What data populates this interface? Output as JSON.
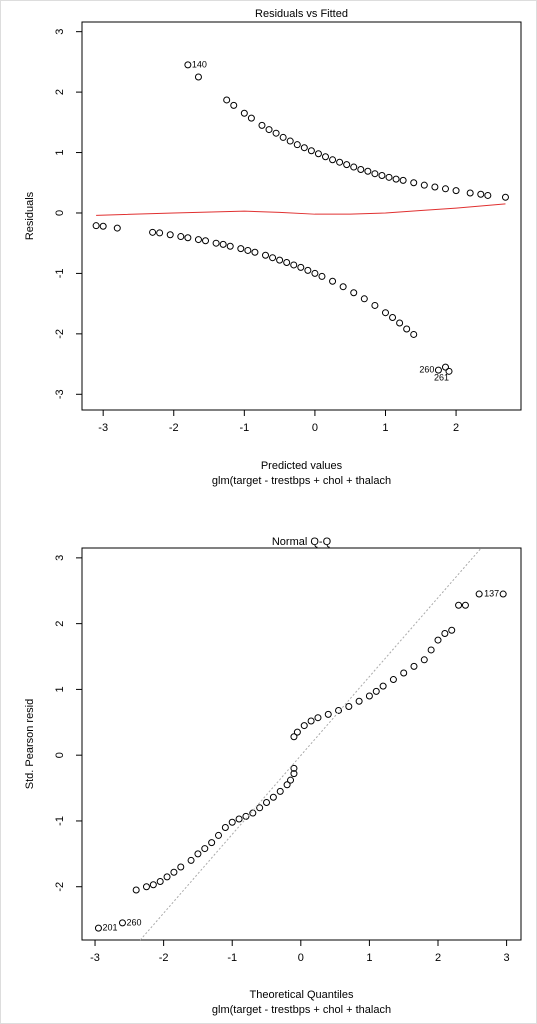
{
  "chart_data": [
    {
      "type": "scatter",
      "title": "Residuals vs Fitted",
      "xlabel": "Predicted values",
      "subtitle": "glm(target - trestbps + chol + thalach",
      "ylabel": "Residuals",
      "xlim": [
        -3.3,
        2.92
      ],
      "ylim": [
        -3.26,
        3.16
      ],
      "xticks": [
        -3,
        -2,
        -1,
        0,
        1,
        2
      ],
      "yticks": [
        -3,
        -2,
        -1,
        0,
        1,
        2,
        3
      ],
      "series": [
        {
          "color": "#000000",
          "x": [
            -1.25,
            -1.15,
            -1.0,
            -0.9,
            -0.75,
            -0.65,
            -0.55,
            -0.45,
            -0.35,
            -0.25,
            -0.15,
            -0.05,
            0.05,
            0.15,
            0.25,
            0.35,
            0.45,
            0.55,
            0.65,
            0.75,
            0.85,
            0.95,
            1.05,
            1.15,
            1.25,
            1.4,
            1.55,
            1.7,
            1.85,
            2.0,
            2.2,
            2.35,
            2.45,
            2.7,
            -3.1,
            -3.0,
            -2.8,
            -2.3,
            -2.2,
            -2.05,
            -1.9,
            -1.8,
            -1.65,
            -1.55,
            -1.4,
            -1.3,
            -1.2,
            -1.05,
            -0.95,
            -0.85,
            -0.7,
            -0.6,
            -0.5,
            -0.4,
            -0.3,
            -0.2,
            -0.1,
            0,
            0.1,
            0.25,
            0.4,
            0.55,
            0.7,
            0.85,
            1.0,
            1.1,
            1.2,
            1.3,
            1.4,
            -1.8,
            -1.65,
            1.75,
            1.85,
            1.9
          ],
          "y": [
            1.87,
            1.78,
            1.65,
            1.57,
            1.45,
            1.38,
            1.32,
            1.25,
            1.19,
            1.13,
            1.08,
            1.03,
            0.98,
            0.93,
            0.88,
            0.84,
            0.8,
            0.76,
            0.72,
            0.69,
            0.65,
            0.62,
            0.59,
            0.56,
            0.54,
            0.5,
            0.46,
            0.43,
            0.4,
            0.37,
            0.33,
            0.31,
            0.29,
            0.26,
            -0.21,
            -0.22,
            -0.25,
            -0.32,
            -0.33,
            -0.36,
            -0.39,
            -0.41,
            -0.44,
            -0.46,
            -0.5,
            -0.52,
            -0.55,
            -0.59,
            -0.62,
            -0.65,
            -0.7,
            -0.74,
            -0.78,
            -0.82,
            -0.86,
            -0.9,
            -0.95,
            -1.0,
            -1.05,
            -1.13,
            -1.22,
            -1.32,
            -1.42,
            -1.53,
            -1.65,
            -1.73,
            -1.82,
            -1.92,
            -2.01,
            2.45,
            2.25,
            -2.6,
            -2.55,
            -2.62
          ]
        },
        {
          "color": "#e03030",
          "line": true,
          "x": [
            -3.1,
            -2,
            -1,
            -0.5,
            0,
            0.5,
            1,
            1.5,
            2,
            2.7
          ],
          "y": [
            -0.04,
            0.0,
            0.03,
            0.01,
            -0.02,
            -0.02,
            0.0,
            0.04,
            0.08,
            0.15
          ]
        }
      ],
      "annotations": [
        {
          "text": "140",
          "x": -1.8,
          "y": 2.45,
          "side": "right"
        },
        {
          "text": "260",
          "x": 1.75,
          "y": -2.6,
          "side": "left"
        },
        {
          "text": "261",
          "x": 1.85,
          "y": -2.62,
          "side": "below"
        }
      ]
    },
    {
      "type": "scatter",
      "title": "Normal Q-Q",
      "xlabel": "Theoretical Quantiles",
      "subtitle": "glm(target - trestbps + chol + thalach",
      "ylabel": "Std. Pearson resid",
      "xlim": [
        -3.19,
        3.21
      ],
      "ylim": [
        -2.81,
        3.15
      ],
      "xticks": [
        -3,
        -2,
        -1,
        0,
        1,
        2,
        3
      ],
      "yticks": [
        -2,
        -1,
        0,
        1,
        2,
        3
      ],
      "series": [
        {
          "color": "#000000",
          "x": [
            -2.95,
            -2.6,
            -2.4,
            -2.25,
            -2.15,
            -2.05,
            -1.95,
            -1.85,
            -1.75,
            -1.6,
            -1.5,
            -1.4,
            -1.3,
            -1.2,
            -1.1,
            -1.0,
            -0.9,
            -0.8,
            -0.7,
            -0.6,
            -0.5,
            -0.4,
            -0.3,
            -0.2,
            -0.15,
            -0.1,
            -0.1,
            -0.1,
            -0.05,
            0.05,
            0.15,
            0.25,
            0.4,
            0.55,
            0.7,
            0.85,
            1.0,
            1.1,
            1.2,
            1.35,
            1.5,
            1.65,
            1.8,
            1.9,
            2.0,
            2.1,
            2.2,
            2.3,
            2.4,
            2.6,
            2.95
          ],
          "y": [
            -2.63,
            -2.55,
            -2.05,
            -2.0,
            -1.97,
            -1.92,
            -1.85,
            -1.78,
            -1.7,
            -1.6,
            -1.5,
            -1.42,
            -1.33,
            -1.22,
            -1.1,
            -1.02,
            -0.97,
            -0.93,
            -0.88,
            -0.8,
            -0.72,
            -0.64,
            -0.55,
            -0.45,
            -0.38,
            -0.28,
            -0.2,
            0.28,
            0.35,
            0.45,
            0.52,
            0.57,
            0.62,
            0.68,
            0.74,
            0.82,
            0.9,
            0.97,
            1.05,
            1.15,
            1.25,
            1.35,
            1.45,
            1.6,
            1.75,
            1.85,
            1.9,
            2.28,
            2.28,
            2.45,
            2.45
          ]
        },
        {
          "color": "#aaaaaa",
          "line": true,
          "dash": true,
          "x": [
            -2.34,
            2.63
          ],
          "y": [
            -2.81,
            3.15
          ]
        }
      ],
      "annotations": [
        {
          "text": "137",
          "x": 2.95,
          "y": 2.45,
          "side": "left"
        },
        {
          "text": "201",
          "x": -2.95,
          "y": -2.63,
          "side": "right"
        },
        {
          "text": "260",
          "x": -2.6,
          "y": -2.55,
          "side": "right"
        }
      ]
    }
  ]
}
